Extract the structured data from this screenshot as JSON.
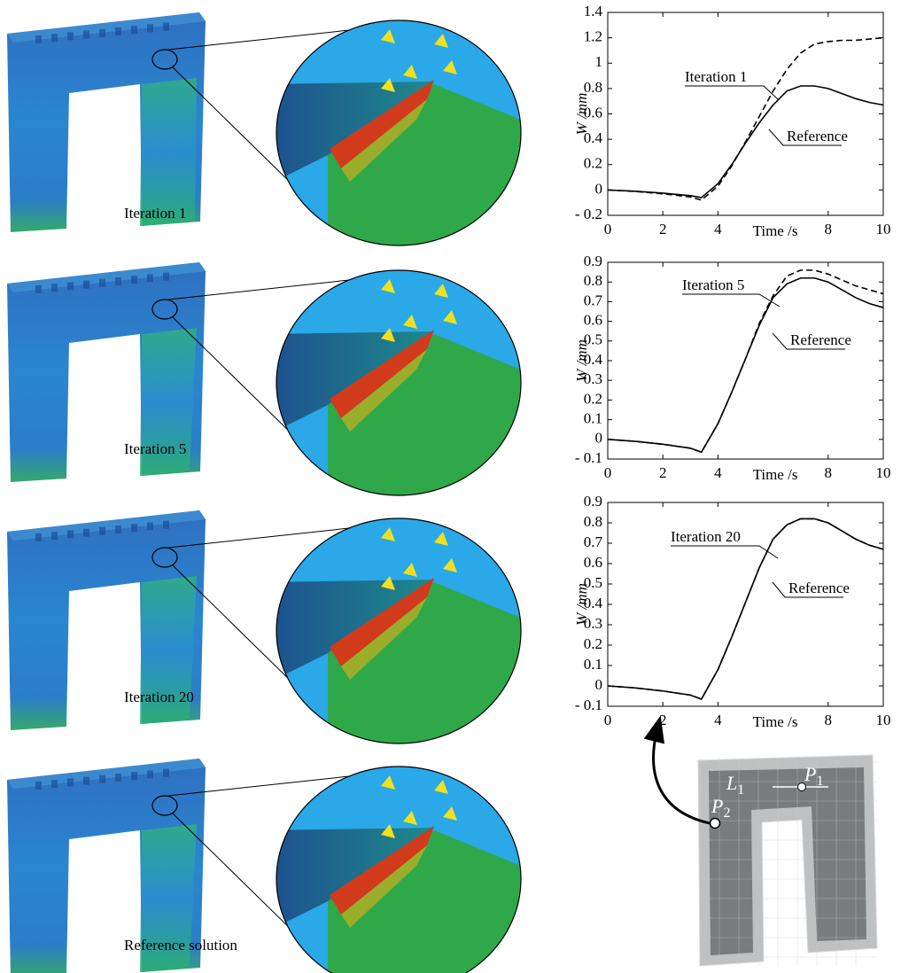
{
  "chart_data": [
    {
      "type": "line",
      "ylabel": "W /mm",
      "xlabel": "Time /s",
      "x": [
        0,
        1,
        2,
        3,
        3.4,
        4,
        4.5,
        5,
        5.5,
        6,
        6.5,
        7,
        7.5,
        8,
        8.5,
        9,
        9.5,
        10
      ],
      "xlim": [
        0,
        10
      ],
      "xticks": [
        0,
        2,
        4,
        8,
        10
      ],
      "ylim": [
        -0.2,
        1.4
      ],
      "yticks": [
        {
          "value": -0.2,
          "label": "- 0.2"
        },
        0,
        0.2,
        0.4,
        0.6,
        0.8,
        1.0,
        1.2,
        1.4
      ],
      "series": [
        {
          "name": "Reference",
          "color": "#000000",
          "linestyle": "solid",
          "values": [
            0,
            -0.01,
            -0.025,
            -0.045,
            -0.06,
            0.05,
            0.2,
            0.37,
            0.53,
            0.67,
            0.78,
            0.82,
            0.82,
            0.8,
            0.76,
            0.72,
            0.69,
            0.67
          ]
        },
        {
          "name": "Iteration 1",
          "color": "#000000",
          "linestyle": "dashed",
          "values": [
            0,
            -0.012,
            -0.03,
            -0.055,
            -0.08,
            0.03,
            0.19,
            0.38,
            0.58,
            0.78,
            0.95,
            1.08,
            1.15,
            1.17,
            1.18,
            1.18,
            1.19,
            1.2
          ]
        }
      ]
    },
    {
      "type": "line",
      "ylabel": "W /mm",
      "xlabel": "Time /s",
      "x": [
        0,
        1,
        2,
        3,
        3.4,
        4,
        4.5,
        5,
        5.5,
        6,
        6.5,
        7,
        7.5,
        8,
        8.5,
        9,
        9.5,
        10
      ],
      "xlim": [
        0,
        10
      ],
      "xticks": [
        0,
        2,
        4,
        8,
        10
      ],
      "ylim": [
        -0.1,
        0.9
      ],
      "yticks": [
        {
          "value": -0.1,
          "label": "- 0.1"
        },
        0,
        0.1,
        0.2,
        0.3,
        0.4,
        0.5,
        0.6,
        0.7,
        0.8,
        0.9
      ],
      "series": [
        {
          "name": "Reference",
          "color": "#000000",
          "linestyle": "solid",
          "values": [
            0,
            -0.01,
            -0.025,
            -0.045,
            -0.065,
            0.08,
            0.24,
            0.41,
            0.58,
            0.72,
            0.79,
            0.82,
            0.82,
            0.8,
            0.76,
            0.72,
            0.69,
            0.67
          ]
        },
        {
          "name": "Iteration 5",
          "color": "#000000",
          "linestyle": "dashed",
          "values": [
            0,
            -0.01,
            -0.025,
            -0.045,
            -0.065,
            0.08,
            0.24,
            0.41,
            0.59,
            0.73,
            0.83,
            0.86,
            0.86,
            0.84,
            0.81,
            0.78,
            0.76,
            0.74
          ]
        }
      ]
    },
    {
      "type": "line",
      "ylabel": "W /mm",
      "xlabel": "Time /s",
      "x": [
        0,
        1,
        2,
        3,
        3.4,
        4,
        4.5,
        5,
        5.5,
        6,
        6.5,
        7,
        7.5,
        8,
        8.5,
        9,
        9.5,
        10
      ],
      "xlim": [
        0,
        10
      ],
      "xticks": [
        0,
        2,
        4,
        8,
        10
      ],
      "ylim": [
        -0.1,
        0.9
      ],
      "yticks": [
        {
          "value": -0.1,
          "label": "- 0.1"
        },
        0,
        0.1,
        0.2,
        0.3,
        0.4,
        0.5,
        0.6,
        0.7,
        0.8,
        0.9
      ],
      "series": [
        {
          "name": "Reference",
          "color": "#000000",
          "linestyle": "solid",
          "values": [
            0,
            -0.01,
            -0.025,
            -0.045,
            -0.065,
            0.08,
            0.24,
            0.41,
            0.58,
            0.72,
            0.79,
            0.82,
            0.82,
            0.8,
            0.76,
            0.72,
            0.69,
            0.67
          ]
        },
        {
          "name": "Iteration 20",
          "color": "#000000",
          "linestyle": "dashed",
          "values": [
            0,
            -0.01,
            -0.025,
            -0.045,
            -0.065,
            0.08,
            0.24,
            0.41,
            0.58,
            0.72,
            0.79,
            0.82,
            0.82,
            0.8,
            0.76,
            0.72,
            0.69,
            0.67
          ]
        }
      ]
    }
  ],
  "figure": {
    "panels": [
      {
        "caption": "Iteration 1"
      },
      {
        "caption": "Iteration 5"
      },
      {
        "caption": "Iteration 20"
      },
      {
        "caption": "Reference solution"
      }
    ],
    "schematic": {
      "labels": [
        {
          "main": "L",
          "sub": "1"
        },
        {
          "main": "P",
          "sub": "1"
        },
        {
          "main": "P",
          "sub": "2"
        }
      ]
    }
  }
}
